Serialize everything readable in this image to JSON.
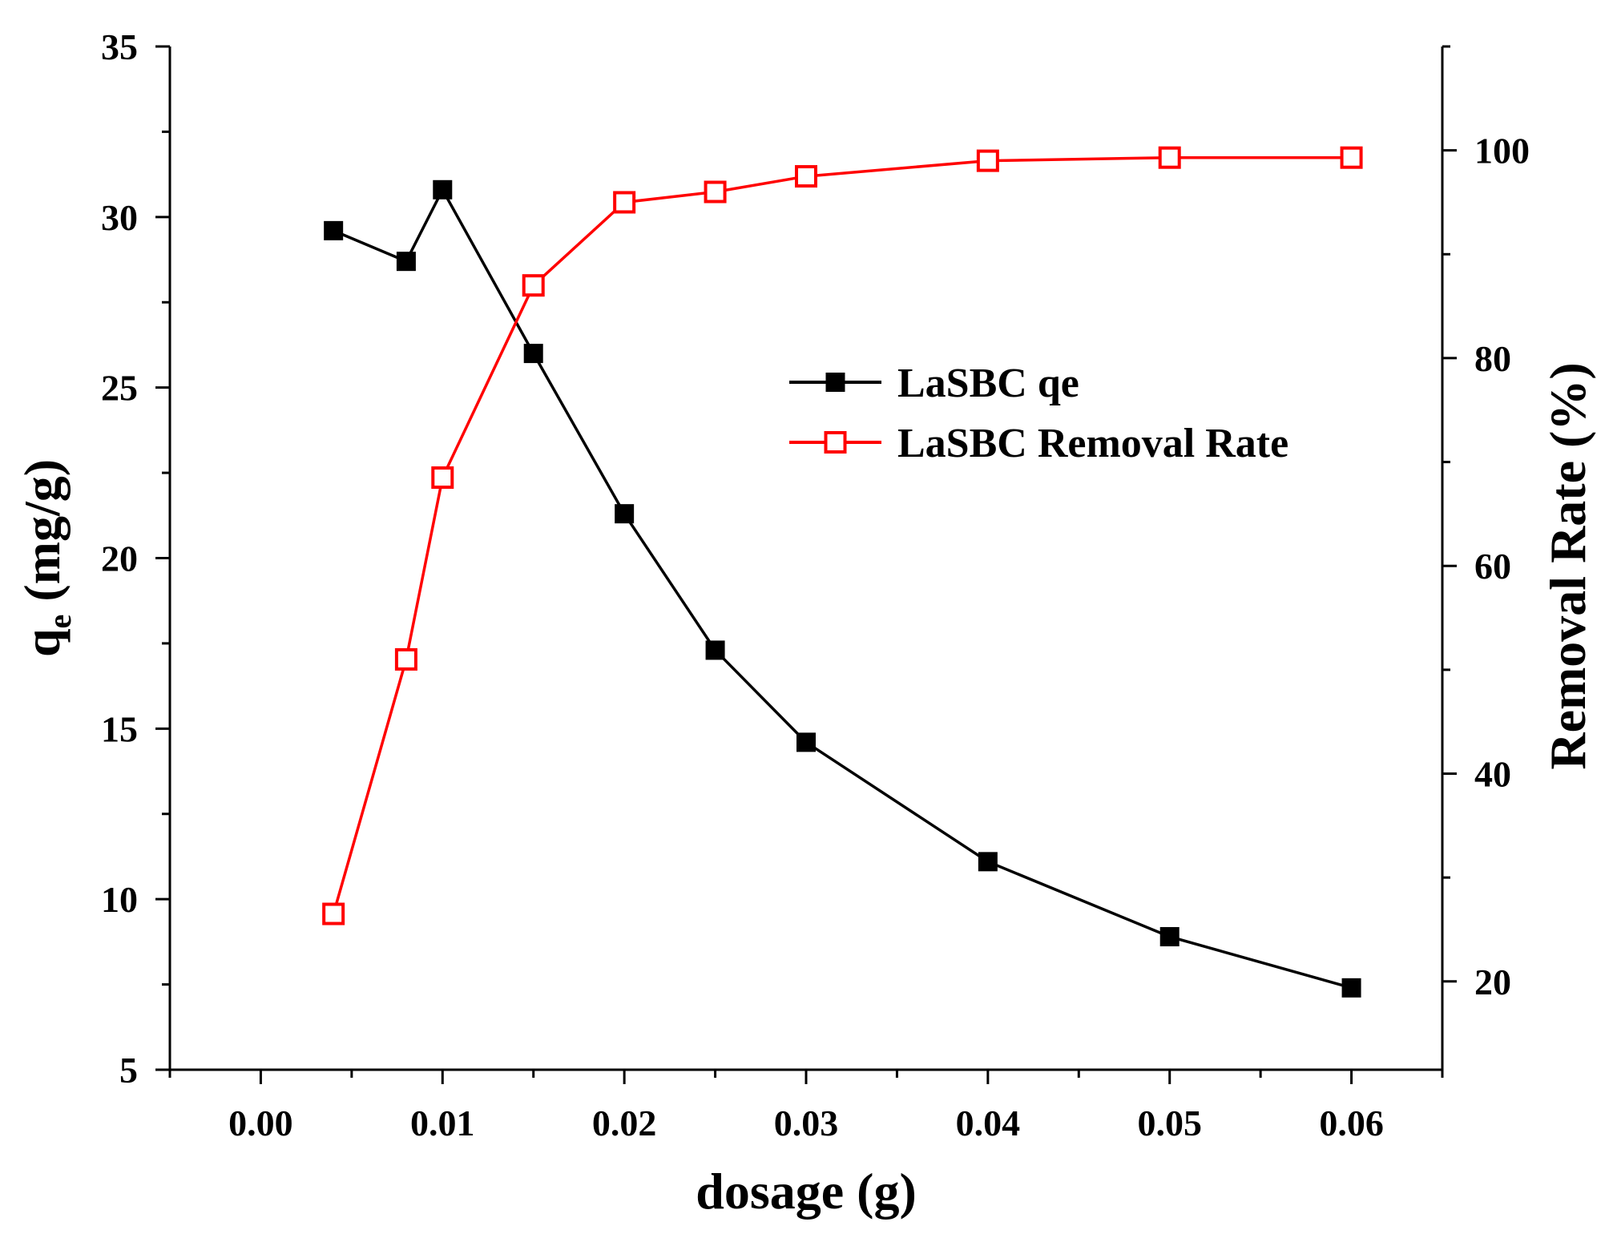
{
  "chart_data": {
    "type": "line",
    "title": "",
    "xlabel": "dosage (g)",
    "ylabel_main": "q",
    "ylabel_sub": "e",
    "ylabel_rest": " (mg/g)",
    "y2label": "Removal Rate (%)",
    "xlim": [
      -0.005,
      0.065
    ],
    "ylim": [
      5,
      35
    ],
    "y2lim": [
      11.5,
      110
    ],
    "x_ticks": [
      0.0,
      0.01,
      0.02,
      0.03,
      0.04,
      0.05,
      0.06
    ],
    "x_tick_labels": [
      "0.00",
      "0.01",
      "0.02",
      "0.03",
      "0.04",
      "0.05",
      "0.06"
    ],
    "y_ticks": [
      5,
      10,
      15,
      20,
      25,
      30,
      35
    ],
    "y_tick_labels": [
      "5",
      "10",
      "15",
      "20",
      "25",
      "30",
      "35"
    ],
    "y2_ticks": [
      20,
      40,
      60,
      80,
      100
    ],
    "y2_tick_labels": [
      "20",
      "40",
      "60",
      "80",
      "100"
    ],
    "legend_position": "center-right",
    "series": [
      {
        "name": "LaSBC qe",
        "axis": "left",
        "color": "#000000",
        "marker": "filled-square",
        "x": [
          0.004,
          0.008,
          0.01,
          0.015,
          0.02,
          0.025,
          0.03,
          0.04,
          0.05,
          0.06
        ],
        "values": [
          29.6,
          28.7,
          30.8,
          26.0,
          21.3,
          17.3,
          14.6,
          11.1,
          8.9,
          7.4
        ]
      },
      {
        "name": "LaSBC Removal Rate",
        "axis": "right",
        "color": "#ff0000",
        "marker": "open-square",
        "x": [
          0.004,
          0.008,
          0.01,
          0.015,
          0.02,
          0.025,
          0.03,
          0.04,
          0.05,
          0.06
        ],
        "values": [
          26.5,
          51.0,
          68.5,
          87.0,
          95.0,
          96.0,
          97.5,
          99.0,
          99.3,
          99.3
        ]
      }
    ]
  }
}
